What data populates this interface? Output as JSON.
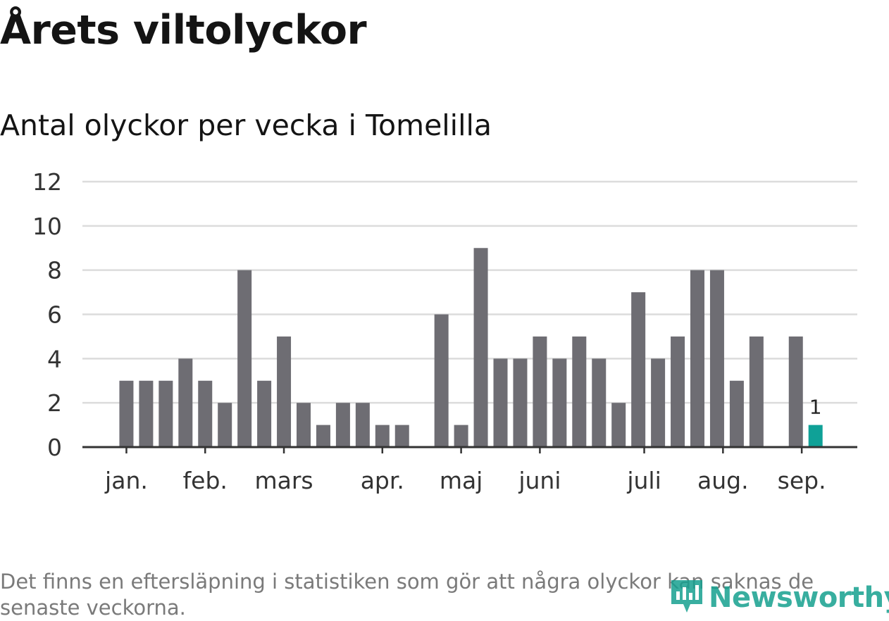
{
  "title": "Årets viltolyckor",
  "subtitle": "Antal olyckor per vecka i Tomelilla",
  "footnote": "Det finns en eftersläpning i statistiken som gör att några olyckor kan saknas de senaste veckorna.",
  "logo": {
    "text": "Newsworthy",
    "icon": "newsworthy-logo-icon"
  },
  "colors": {
    "bar": "#6e6d73",
    "highlight": "#0fa197",
    "grid": "#dcdcdc",
    "axis": "#333333",
    "logo": "#16a08f"
  },
  "chart_data": {
    "type": "bar",
    "title": "Antal olyckor per vecka i Tomelilla",
    "xlabel": "",
    "ylabel": "",
    "ylim": [
      0,
      12
    ],
    "yticks": [
      "0",
      "2",
      "4",
      "6",
      "8",
      "10",
      "12"
    ],
    "grid": true,
    "week_slots": 38,
    "values": [
      null,
      3,
      3,
      3,
      4,
      3,
      2,
      8,
      3,
      5,
      2,
      1,
      2,
      2,
      1,
      1,
      null,
      6,
      1,
      9,
      4,
      4,
      5,
      4,
      5,
      4,
      2,
      7,
      4,
      5,
      8,
      8,
      3,
      5,
      null,
      5,
      1
    ],
    "highlight_index": 36,
    "highlight_label": "1",
    "month_labels": [
      {
        "label": "jan.",
        "week": 1.0
      },
      {
        "label": "feb.",
        "week": 5.0
      },
      {
        "label": "mars",
        "week": 9.0
      },
      {
        "label": "apr.",
        "week": 14.0
      },
      {
        "label": "maj",
        "week": 18.0
      },
      {
        "label": "juni",
        "week": 22.0
      },
      {
        "label": "juli",
        "week": 27.3
      },
      {
        "label": "aug.",
        "week": 31.3
      },
      {
        "label": "sep.",
        "week": 35.3
      }
    ]
  }
}
